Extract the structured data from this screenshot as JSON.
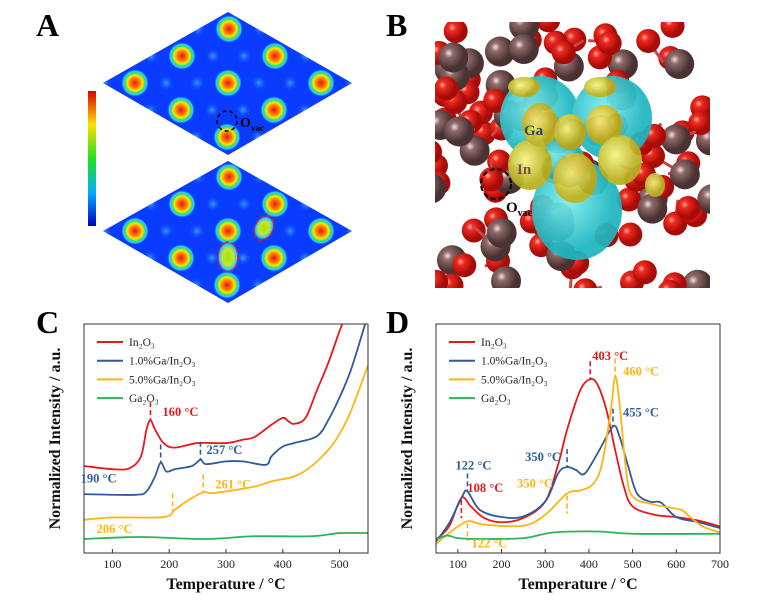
{
  "panels": {
    "a": {
      "label": "A",
      "ovac": {
        "main": "O",
        "sub": "vac"
      }
    },
    "b": {
      "label": "B",
      "ga": "Ga",
      "in": "In",
      "ovac": {
        "main": "O",
        "sub": "vac"
      }
    },
    "c": {
      "label": "C"
    },
    "d": {
      "label": "D"
    }
  },
  "colors": {
    "In2O3": "#e8191c",
    "Ga1": "#2f5b9a",
    "Ga5": "#fdb515",
    "Ga2O3": "#2db35a"
  },
  "chart_data": [
    {
      "panel": "C",
      "type": "line",
      "xlabel": "Temperature / °C",
      "ylabel": "Normalized Intensity / a.u.",
      "xlim": [
        50,
        550
      ],
      "ylim": [
        0,
        100
      ],
      "xticks": [
        100,
        200,
        300,
        400,
        500
      ],
      "legend": "top-left",
      "grid": false,
      "series": [
        {
          "name": "In₂O₃",
          "color": "#e8191c",
          "x": [
            50,
            100,
            130,
            150,
            160,
            167,
            175,
            190,
            210,
            250,
            300,
            330,
            350,
            380,
            400,
            410,
            420,
            440,
            460,
            480,
            500,
            505
          ],
          "y": [
            38,
            36.6,
            37,
            42,
            54,
            58,
            54,
            48,
            46,
            48,
            48,
            49.5,
            50.6,
            56,
            59,
            57.5,
            56.4,
            59,
            71,
            83,
            97,
            100
          ]
        },
        {
          "name": "1.0%Ga/In₂O₃",
          "color": "#2f5b9a",
          "x": [
            50,
            140,
            160,
            175,
            185,
            195,
            210,
            240,
            255,
            265,
            300,
            330,
            370,
            380,
            400,
            420,
            460,
            480,
            500,
            520,
            545
          ],
          "y": [
            25.7,
            25.4,
            26.9,
            33.4,
            39.5,
            35.6,
            36.6,
            38,
            40.7,
            38.8,
            40,
            40,
            38.5,
            42.2,
            46.5,
            48,
            51,
            58,
            68,
            80,
            100
          ]
        },
        {
          "name": "5.0%Ga/In₂O₃",
          "color": "#fdb515",
          "x": [
            50,
            100,
            190,
            210,
            230,
            260,
            280,
            350,
            380,
            420,
            450,
            480,
            500,
            520,
            550
          ],
          "y": [
            14.5,
            15.5,
            15.7,
            18.9,
            22.5,
            26.5,
            26.2,
            29,
            31.3,
            33.4,
            37.8,
            45,
            52,
            62,
            82
          ]
        },
        {
          "name": "Ga₂O₃",
          "color": "#2db35a",
          "x": [
            50,
            150,
            260,
            350,
            450,
            500,
            550
          ],
          "y": [
            6.1,
            7,
            6.1,
            7.3,
            7.3,
            8.7,
            8.7
          ]
        }
      ],
      "annotations": [
        {
          "text": "160 °C",
          "x": 167,
          "series": 0,
          "color": "#e8191c"
        },
        {
          "text": "190 °C",
          "x": 185,
          "series": 1,
          "color": "#2f5b9a"
        },
        {
          "text": "257 °C",
          "x": 255,
          "series": 1,
          "color": "#2f5b9a"
        },
        {
          "text": "206 °C",
          "x": 206,
          "series": 2,
          "color": "#fdb515"
        },
        {
          "text": "261 °C",
          "x": 260,
          "series": 2,
          "color": "#fdb515"
        }
      ]
    },
    {
      "panel": "D",
      "type": "line",
      "xlabel": "Temperature / °C",
      "ylabel": "Normalized Intensity / a.u.",
      "xlim": [
        50,
        700
      ],
      "ylim": [
        0,
        100
      ],
      "xticks": [
        100,
        200,
        300,
        400,
        500,
        600,
        700
      ],
      "legend": "top-left",
      "grid": false,
      "series": [
        {
          "name": "In₂O₃",
          "color": "#e8191c",
          "x": [
            50,
            80,
            108,
            130,
            160,
            200,
            250,
            300,
            330,
            350,
            380,
            403,
            420,
            440,
            460,
            480,
            500,
            550,
            600,
            650,
            700
          ],
          "y": [
            5.8,
            11.6,
            24,
            20.3,
            15.3,
            13.4,
            15.3,
            22.5,
            39,
            53.8,
            71,
            75.9,
            73.4,
            62.5,
            45,
            29,
            20.3,
            16.7,
            15.7,
            14.2,
            11.6
          ]
        },
        {
          "name": "1.0%Ga/In₂O₃",
          "color": "#2f5b9a",
          "x": [
            50,
            80,
            110,
            122,
            150,
            200,
            250,
            300,
            330,
            350,
            370,
            390,
            420,
            455,
            470,
            490,
            510,
            540,
            565,
            600,
            650,
            700
          ],
          "y": [
            5,
            13,
            24.7,
            26.9,
            18.9,
            15.7,
            16,
            22.5,
            34.9,
            37.5,
            36.3,
            34.6,
            43.6,
            55.2,
            50.9,
            37.8,
            26,
            22.4,
            22,
            15.7,
            13.5,
            10.9
          ]
        },
        {
          "name": "5.0%Ga/In₂O₃",
          "color": "#fdb515",
          "x": [
            50,
            80,
            122,
            160,
            250,
            300,
            350,
            380,
            410,
            430,
            450,
            460,
            470,
            485,
            500,
            550,
            610,
            630,
            660,
            700
          ],
          "y": [
            3.9,
            8.7,
            13.8,
            12.4,
            11.9,
            16.7,
            26,
            27.3,
            30.2,
            39,
            62.2,
            77,
            65.4,
            36.3,
            24.7,
            21.1,
            18.9,
            16,
            11.6,
            9
          ]
        },
        {
          "name": "Ga₂O₃",
          "color": "#2db35a",
          "x": [
            50,
            75,
            100,
            150,
            250,
            320,
            420,
            500,
            700
          ],
          "y": [
            5.8,
            7.6,
            6.5,
            6.1,
            6.5,
            9,
            9.4,
            8.4,
            8.4
          ]
        }
      ],
      "annotations": [
        {
          "text": "122 °C",
          "x": 122,
          "series": 1,
          "color": "#2f5b9a"
        },
        {
          "text": "108 °C",
          "x": 108,
          "series": 0,
          "color": "#e8191c"
        },
        {
          "text": "122 °C",
          "x": 122,
          "series": 2,
          "color": "#fdb515"
        },
        {
          "text": "350 °C",
          "x": 350,
          "series": 1,
          "color": "#2f5b9a"
        },
        {
          "text": "350 °C",
          "x": 350,
          "series": 2,
          "color": "#fdb515"
        },
        {
          "text": "403 °C",
          "x": 403,
          "series": 0,
          "color": "#e8191c"
        },
        {
          "text": "460 °C",
          "x": 460,
          "series": 2,
          "color": "#fdb515"
        },
        {
          "text": "455 °C",
          "x": 455,
          "series": 1,
          "color": "#2f5b9a"
        }
      ]
    }
  ]
}
